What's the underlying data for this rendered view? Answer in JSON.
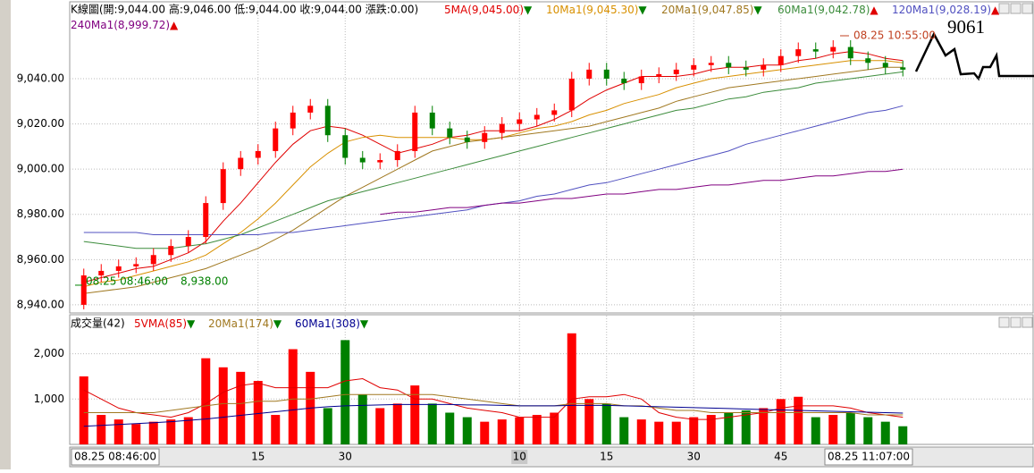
{
  "chart_data": [
    {
      "type": "candlestick",
      "title": "K線圖(開:9,044.00 高:9,046.00 低:9,044.00 收:9,044.00 漲跌:0.00)",
      "categories": [
        "08.25 08:46:00",
        null,
        null,
        null,
        null,
        null,
        null,
        null,
        null,
        null,
        "15",
        null,
        null,
        null,
        null,
        "30",
        null,
        null,
        null,
        null,
        null,
        null,
        null,
        null,
        null,
        "10",
        null,
        null,
        null,
        null,
        "15",
        null,
        null,
        null,
        null,
        "30",
        null,
        null,
        null,
        null,
        "45",
        null,
        null,
        null,
        null,
        null,
        null,
        "08.25 11:07:00"
      ],
      "open": [
        8940,
        8953,
        8955,
        8957,
        8958,
        8962,
        8966,
        8970,
        8985,
        9000,
        9005,
        9008,
        9018,
        9025,
        9028,
        9015,
        9005,
        9003,
        9004,
        9008,
        9025,
        9018,
        9014,
        9012,
        9016,
        9020,
        9022,
        9024,
        9026,
        9040,
        9044,
        9040,
        9038,
        9041,
        9042,
        9044,
        9046,
        9047,
        9045,
        9044,
        9046,
        9050,
        9053,
        9052,
        9054,
        9049,
        9047,
        9045
      ],
      "high": [
        8956,
        8958,
        8960,
        8961,
        8965,
        8969,
        8973,
        8988,
        9003,
        9008,
        9011,
        9021,
        9028,
        9031,
        9031,
        9018,
        9008,
        9007,
        9011,
        9028,
        9028,
        9021,
        9017,
        9019,
        9023,
        9025,
        9027,
        9029,
        9043,
        9047,
        9047,
        9043,
        9044,
        9045,
        9047,
        9049,
        9050,
        9050,
        9048,
        9049,
        9053,
        9056,
        9056,
        9057,
        9057,
        9052,
        9050,
        9048
      ],
      "low": [
        8938,
        8950,
        8952,
        8954,
        8955,
        8959,
        8963,
        8967,
        8982,
        8997,
        9002,
        9005,
        9015,
        9022,
        9012,
        9002,
        9000,
        9000,
        9001,
        9005,
        9015,
        9011,
        9009,
        9009,
        9013,
        9017,
        9019,
        9021,
        9023,
        9037,
        9037,
        9035,
        9035,
        9038,
        9039,
        9041,
        9043,
        9042,
        9041,
        9041,
        9043,
        9047,
        9049,
        9049,
        9046,
        9044,
        9042,
        9041
      ],
      "close": [
        8953,
        8955,
        8957,
        8958,
        8962,
        8966,
        8970,
        8985,
        9000,
        9005,
        9008,
        9018,
        9025,
        9028,
        9015,
        9005,
        9003,
        9004,
        9008,
        9025,
        9018,
        9014,
        9012,
        9016,
        9020,
        9022,
        9024,
        9026,
        9040,
        9044,
        9040,
        9038,
        9041,
        9042,
        9044,
        9046,
        9047,
        9045,
        9044,
        9046,
        9050,
        9053,
        9052,
        9054,
        9049,
        9047,
        9045,
        9044
      ],
      "up_color": "#ff0000",
      "down_color": "#008000",
      "flat_color": "#000000",
      "ylim": [
        8936.4,
        9074
      ],
      "yticks": [
        {
          "value": 8940,
          "label": "8,940.00"
        },
        {
          "value": 8960,
          "label": "8,960.00"
        },
        {
          "value": 8980,
          "label": "8,980.00"
        },
        {
          "value": 9000,
          "label": "9,000.00"
        },
        {
          "value": 9020,
          "label": "9,020.00"
        },
        {
          "value": 9040,
          "label": "9,040.00"
        }
      ],
      "grid": true,
      "series": [
        {
          "name": "5MA(9,045.00)",
          "trend": "▼",
          "color": "#e00000",
          "values": [
            8950,
            8952,
            8954,
            8956,
            8957,
            8960,
            8963,
            8968,
            8977,
            8985,
            8994,
            9003,
            9011,
            9017,
            9019,
            9018,
            9015,
            9011,
            9007,
            9009,
            9011,
            9014,
            9015,
            9017,
            9017,
            9017,
            9019,
            9022,
            9026,
            9031,
            9035,
            9038,
            9041,
            9041,
            9041,
            9042,
            9044,
            9045,
            9045,
            9046,
            9046,
            9048,
            9049,
            9051,
            9052,
            9051,
            9049,
            9048
          ]
        },
        {
          "name": "10Ma1(9,045.30)",
          "trend": "▼",
          "color": "#d89000",
          "values": [
            8948,
            8950,
            8951,
            8953,
            8955,
            8957,
            8959,
            8962,
            8967,
            8972,
            8978,
            8985,
            8993,
            9001,
            9007,
            9012,
            9014,
            9015,
            9014,
            9014,
            9014,
            9014,
            9013,
            9013,
            9014,
            9016,
            9018,
            9019,
            9021,
            9024,
            9026,
            9029,
            9031,
            9033,
            9036,
            9038,
            9040,
            9041,
            9042,
            9043,
            9044,
            9045,
            9046,
            9047,
            9048,
            9048,
            9048,
            9047
          ]
        },
        {
          "name": "20Ma1(9,047.85)",
          "trend": "▼",
          "color": "#a07820",
          "values": [
            8945,
            8946,
            8947,
            8948,
            8950,
            8952,
            8954,
            8956,
            8959,
            8962,
            8965,
            8969,
            8973,
            8978,
            8983,
            8988,
            8992,
            8996,
            9000,
            9004,
            9008,
            9010,
            9012,
            9013,
            9014,
            9015,
            9016,
            9017,
            9018,
            9019,
            9021,
            9023,
            9025,
            9027,
            9030,
            9032,
            9034,
            9036,
            9037,
            9038,
            9039,
            9040,
            9041,
            9042,
            9043,
            9044,
            9045,
            9045
          ]
        },
        {
          "name": "60Ma1(9,042.78)",
          "trend": "▲",
          "color": "#3c8c3c",
          "values": [
            8968,
            8967,
            8966,
            8965,
            8965,
            8965,
            8966,
            8967,
            8969,
            8971,
            8974,
            8977,
            8980,
            8983,
            8986,
            8988,
            8990,
            8992,
            8994,
            8996,
            8998,
            9000,
            9002,
            9004,
            9006,
            9008,
            9010,
            9012,
            9014,
            9016,
            9018,
            9020,
            9022,
            9024,
            9026,
            9027,
            9029,
            9031,
            9032,
            9034,
            9035,
            9036,
            9038,
            9039,
            9040,
            9041,
            9042,
            9043
          ]
        },
        {
          "name": "120Ma1(9,028.19)",
          "trend": "▲",
          "color": "#5050c0",
          "values": [
            8972,
            8972,
            8972,
            8972,
            8971,
            8971,
            8971,
            8971,
            8971,
            8971,
            8971,
            8972,
            8972,
            8973,
            8974,
            8975,
            8976,
            8977,
            8978,
            8979,
            8980,
            8981,
            8982,
            8984,
            8985,
            8986,
            8988,
            8989,
            8991,
            8993,
            8994,
            8996,
            8998,
            9000,
            9002,
            9004,
            9006,
            9008,
            9011,
            9013,
            9015,
            9017,
            9019,
            9021,
            9023,
            9025,
            9026,
            9028
          ]
        },
        {
          "name": "240Ma1(8,999.72)",
          "trend": "▲",
          "color": "#800080",
          "values": [
            null,
            null,
            null,
            null,
            null,
            null,
            null,
            null,
            null,
            null,
            null,
            null,
            null,
            null,
            null,
            null,
            null,
            8980,
            8981,
            8981,
            8982,
            8983,
            8983,
            8984,
            8985,
            8985,
            8986,
            8987,
            8987,
            8988,
            8989,
            8989,
            8990,
            8991,
            8991,
            8992,
            8993,
            8993,
            8994,
            8995,
            8995,
            8996,
            8997,
            8997,
            8998,
            8999,
            8999,
            9000
          ]
        }
      ],
      "annotations": [
        "08.25 10:55:00",
        "08.25 08:46:00",
        "8,938.00",
        "9061"
      ]
    },
    {
      "type": "bar",
      "title": "成交量(42)",
      "values": [
        1500,
        650,
        550,
        450,
        500,
        550,
        600,
        1900,
        1700,
        1600,
        1400,
        650,
        2100,
        1600,
        800,
        2300,
        1100,
        800,
        900,
        1300,
        900,
        700,
        600,
        500,
        550,
        600,
        650,
        700,
        2450,
        1000,
        900,
        600,
        550,
        500,
        500,
        600,
        650,
        700,
        750,
        800,
        1000,
        1050,
        600,
        650,
        700,
        600,
        500,
        400
      ],
      "ylim": [
        0,
        2840
      ],
      "yticks": [
        {
          "value": 1000,
          "label": "1,000"
        },
        {
          "value": 2000,
          "label": "2,000"
        }
      ],
      "grid": true,
      "series": [
        {
          "name": "5VMA(85)",
          "trend": "▼",
          "color": "#e00000",
          "values": [
            1200,
            1000,
            800,
            700,
            650,
            600,
            700,
            900,
            1150,
            1300,
            1350,
            1250,
            1250,
            1250,
            1250,
            1400,
            1450,
            1250,
            1200,
            1000,
            1000,
            900,
            800,
            750,
            700,
            600,
            600,
            600,
            1000,
            1050,
            1050,
            1100,
            1000,
            700,
            600,
            550,
            550,
            600,
            650,
            700,
            800,
            850,
            850,
            850,
            800,
            700,
            650,
            600
          ]
        },
        {
          "name": "20Ma1(174)",
          "trend": "▼",
          "color": "#a07820",
          "values": [
            700,
            700,
            700,
            700,
            700,
            750,
            800,
            850,
            900,
            900,
            950,
            950,
            1000,
            1000,
            1050,
            1100,
            1100,
            1100,
            1100,
            1100,
            1100,
            1050,
            1000,
            950,
            900,
            850,
            850,
            850,
            900,
            900,
            900,
            850,
            850,
            800,
            750,
            750,
            700,
            700,
            700,
            700,
            700,
            700,
            700,
            700,
            700,
            650,
            650,
            650
          ]
        },
        {
          "name": "60Ma1(308)",
          "trend": "▼",
          "color": "#000090",
          "values": [
            400,
            420,
            440,
            460,
            480,
            500,
            530,
            560,
            600,
            640,
            680,
            720,
            760,
            800,
            830,
            850,
            860,
            870,
            880,
            880,
            880,
            880,
            870,
            870,
            860,
            850,
            850,
            850,
            860,
            860,
            860,
            850,
            840,
            830,
            820,
            810,
            800,
            790,
            780,
            770,
            760,
            750,
            740,
            730,
            720,
            710,
            700,
            690
          ]
        }
      ]
    }
  ]
}
